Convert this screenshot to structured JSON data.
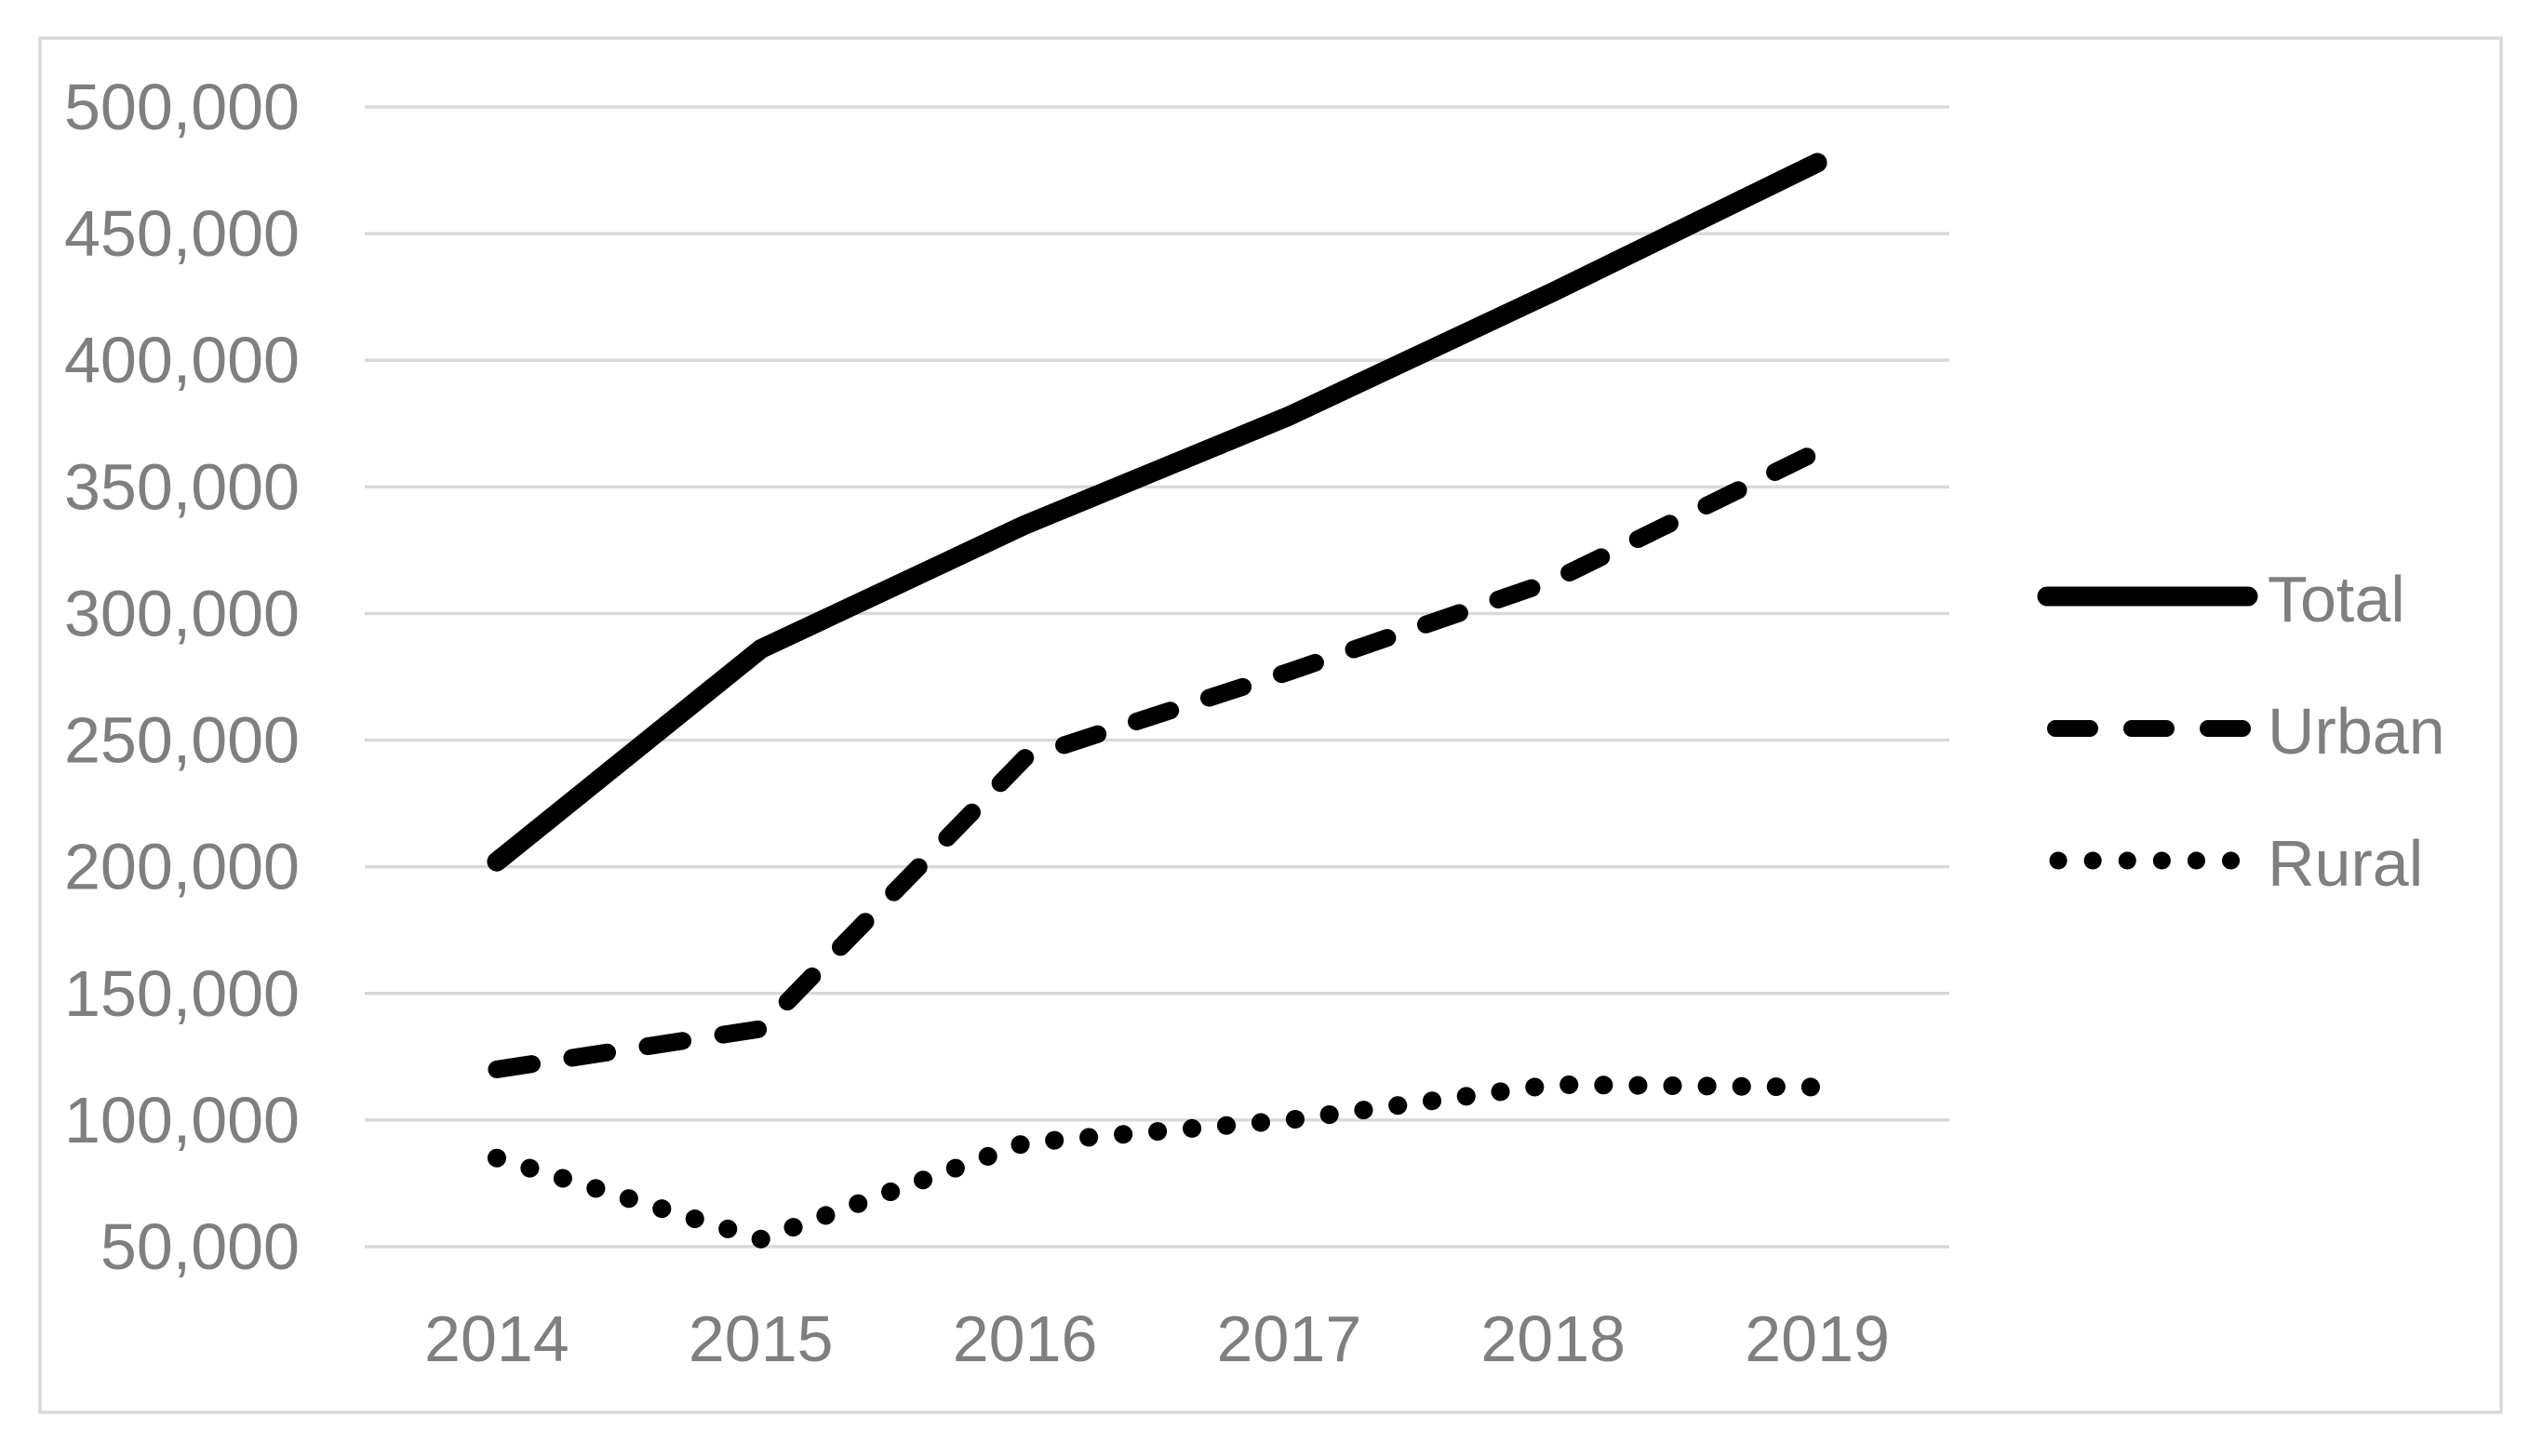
{
  "figure": {
    "background_color": "#ffffff",
    "border_color": "#d9d9d9",
    "gridline_color": "#d9d9d9",
    "tick_text_color": "#7f7f7f",
    "line_color": "#000000"
  },
  "chart_data": {
    "type": "line",
    "title": "",
    "xlabel": "",
    "ylabel": "",
    "grid": true,
    "legend_position": "right",
    "x": [
      "2014",
      "2015",
      "2016",
      "2017",
      "2018",
      "2019"
    ],
    "series": [
      {
        "name": "Total",
        "style": "solid",
        "values": [
          202000,
          286000,
          335000,
          378000,
          427000,
          478000
        ]
      },
      {
        "name": "Urban",
        "style": "dashed",
        "values": [
          120000,
          136000,
          243000,
          277000,
          313000,
          364000
        ]
      },
      {
        "name": "Rural",
        "style": "dotted",
        "values": [
          85000,
          53000,
          91000,
          100000,
          114000,
          113000
        ]
      }
    ],
    "ylim": [
      50000,
      500000
    ],
    "ytick_step": 50000,
    "ytick_labels": [
      "50,000",
      "100,000",
      "150,000",
      "200,000",
      "250,000",
      "300,000",
      "350,000",
      "400,000",
      "450,000",
      "500,000"
    ]
  },
  "legend": {
    "items": [
      {
        "label": "Total"
      },
      {
        "label": "Urban"
      },
      {
        "label": "Rural"
      }
    ]
  }
}
